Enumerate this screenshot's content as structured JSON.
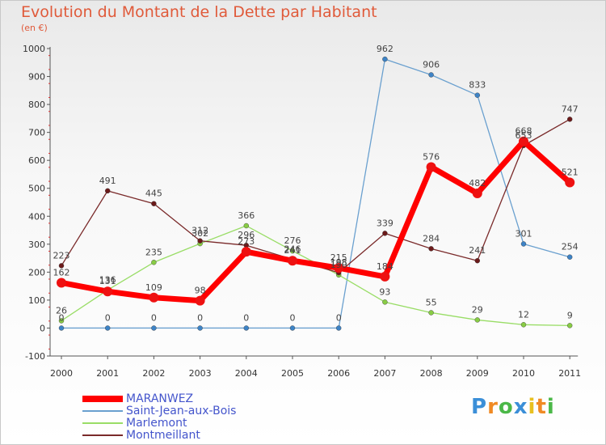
{
  "chart_data": {
    "type": "line",
    "title": "Evolution du Montant de la Dette par Habitant",
    "subtitle": "(en €)",
    "x": [
      "2000",
      "2001",
      "2002",
      "2003",
      "2004",
      "2005",
      "2006",
      "2007",
      "2008",
      "2009",
      "2010",
      "2011"
    ],
    "ylim": [
      -100,
      1000
    ],
    "yticks": [
      -100,
      0,
      100,
      200,
      300,
      400,
      500,
      600,
      700,
      800,
      900,
      1000
    ],
    "grid": false,
    "legend_position": "bottom-left",
    "series": [
      {
        "name": "MARANWEZ",
        "color": "#ff0000",
        "width": 7,
        "marker_color": "#ee1111",
        "values": [
          162,
          131,
          109,
          98,
          273,
          241,
          215,
          184,
          576,
          482,
          668,
          521
        ]
      },
      {
        "name": "Saint-Jean-aux-Bois",
        "color": "#6aa0cf",
        "width": 1.3,
        "marker_color": "#3d83c6",
        "values": [
          0,
          0,
          0,
          0,
          0,
          0,
          0,
          962,
          906,
          833,
          301,
          254
        ]
      },
      {
        "name": "Marlemont",
        "color": "#99dd66",
        "width": 1.3,
        "marker_color": "#88cc44",
        "values": [
          26,
          136,
          235,
          302,
          366,
          276,
          190,
          93,
          55,
          29,
          12,
          9
        ]
      },
      {
        "name": "Montmeillant",
        "color": "#7a2a2a",
        "width": 1.3,
        "marker_color": "#6b1a1a",
        "values": [
          223,
          491,
          445,
          312,
          296,
          246,
          198,
          339,
          284,
          241,
          653,
          747
        ]
      }
    ]
  },
  "brand": {
    "name": "Proxiti",
    "letters": [
      "P",
      "r",
      "o",
      "x",
      "i",
      "t",
      "i"
    ],
    "colors": [
      "#3b8fd8",
      "#f08a24",
      "#4bb848",
      "#3b8fd8",
      "#e8c020",
      "#f08a24",
      "#4bb848"
    ]
  }
}
